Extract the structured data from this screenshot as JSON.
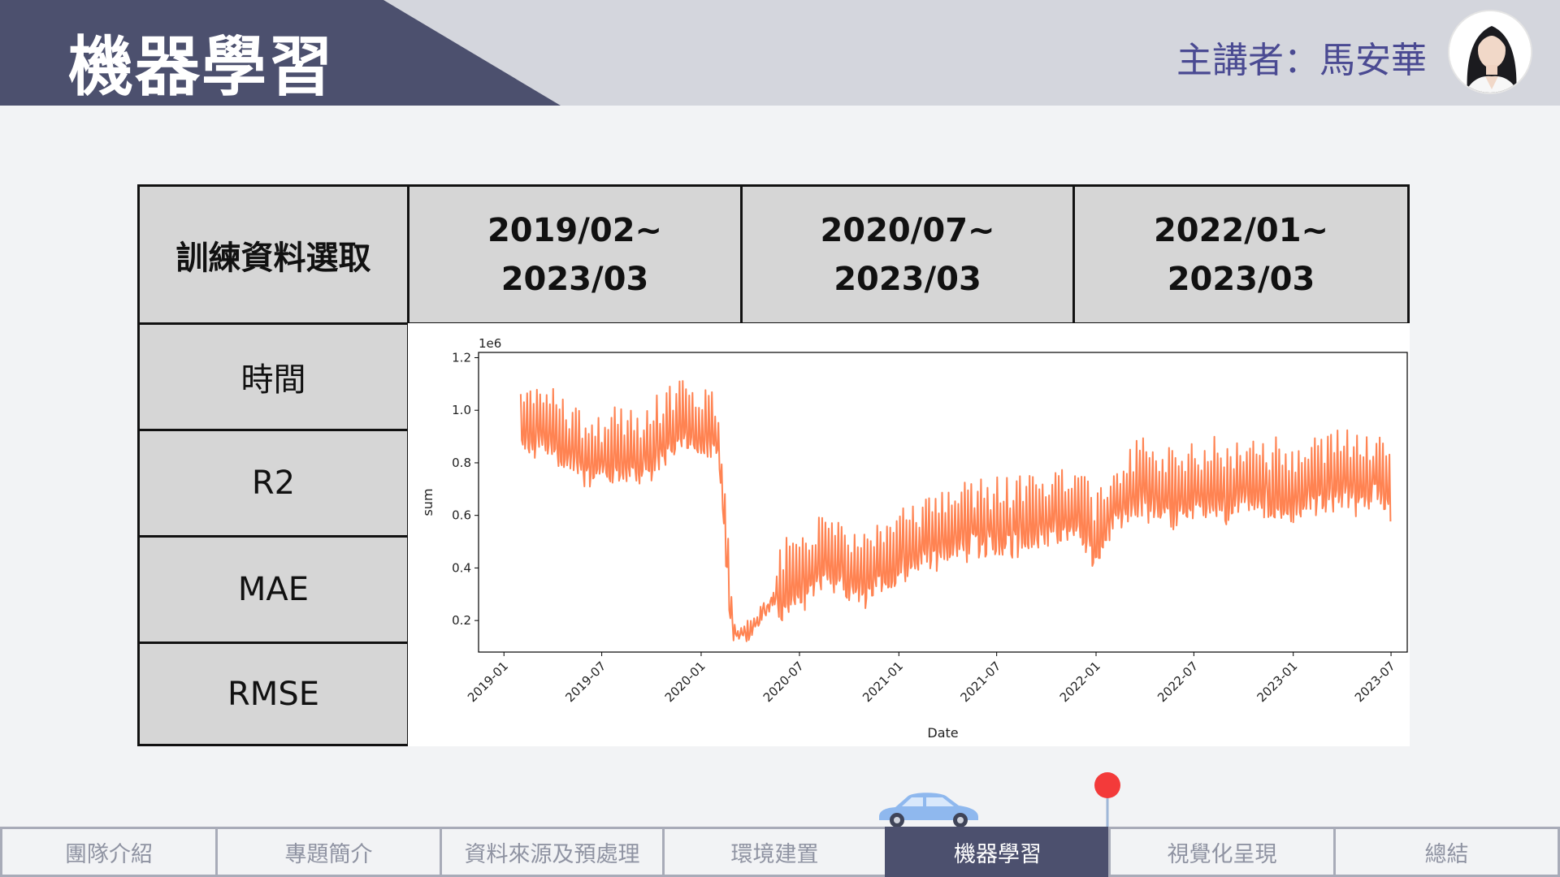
{
  "header": {
    "title": "機器學習",
    "speaker": "主講者：馬安華"
  },
  "table": {
    "header": {
      "first": "訓練資料選取",
      "periods": [
        {
          "line1": "2019/02~",
          "line2": "2023/03"
        },
        {
          "line1": "2020/07~",
          "line2": "2023/03"
        },
        {
          "line1": "2022/01~",
          "line2": "2023/03"
        }
      ]
    },
    "rows": [
      "時間",
      "R2",
      "MAE",
      "RMSE"
    ]
  },
  "chart_data": {
    "type": "line",
    "xlabel": "Date",
    "ylabel": "sum",
    "offset_label": "1e6",
    "x_ticks": [
      "2019-01",
      "2019-07",
      "2020-01",
      "2020-07",
      "2021-01",
      "2021-07",
      "2022-01",
      "2022-07",
      "2023-01",
      "2023-07"
    ],
    "y_ticks": [
      "0.2",
      "0.4",
      "0.6",
      "0.8",
      "1.0",
      "1.2"
    ],
    "ylim": [
      0.08,
      1.22
    ],
    "xlim": [
      "2018-11-15",
      "2023-07-31"
    ],
    "color": "#ff8352",
    "grid": false,
    "series": [
      {
        "x": [
          "2019-02",
          "2019-03",
          "2019-04",
          "2019-05",
          "2019-06",
          "2019-07",
          "2019-08",
          "2019-09",
          "2019-10",
          "2019-11",
          "2019-12",
          "2020-01",
          "2020-02",
          "2020-03",
          "2020-04",
          "2020-05",
          "2020-06",
          "2020-07",
          "2020-08",
          "2020-09",
          "2020-10",
          "2020-11",
          "2020-12",
          "2021-01",
          "2021-02",
          "2021-03",
          "2021-04",
          "2021-05",
          "2021-06",
          "2021-07",
          "2021-08",
          "2021-09",
          "2021-10",
          "2021-11",
          "2021-12",
          "2022-01",
          "2022-02",
          "2022-03",
          "2022-04",
          "2022-05",
          "2022-06",
          "2022-07",
          "2022-08",
          "2022-09",
          "2022-10",
          "2022-11",
          "2022-12",
          "2023-01",
          "2023-02",
          "2023-03",
          "2023-04",
          "2023-05",
          "2023-06",
          "2023-07"
        ],
        "y": [
          0.95,
          0.96,
          0.93,
          0.88,
          0.84,
          0.83,
          0.86,
          0.83,
          0.87,
          0.92,
          0.97,
          0.95,
          0.92,
          0.15,
          0.16,
          0.26,
          0.33,
          0.37,
          0.42,
          0.46,
          0.4,
          0.38,
          0.43,
          0.47,
          0.5,
          0.53,
          0.55,
          0.57,
          0.58,
          0.57,
          0.58,
          0.6,
          0.62,
          0.64,
          0.65,
          0.5,
          0.66,
          0.7,
          0.72,
          0.7,
          0.69,
          0.71,
          0.72,
          0.71,
          0.73,
          0.74,
          0.72,
          0.7,
          0.74,
          0.75,
          0.76,
          0.74,
          0.77,
          0.7
        ]
      }
    ]
  },
  "nav": {
    "items": [
      "團隊介紹",
      "專題簡介",
      "資料來源及預處理",
      "環境建置",
      "機器學習",
      "視覺化呈現",
      "總結"
    ],
    "active_index": 4
  },
  "colors": {
    "header_band": "#4c506e",
    "header_bg": "#d4d6dd",
    "speaker_text": "#4a4a92",
    "table_cell": "#d6d6d6",
    "line": "#ff8352",
    "pin": "#f33a3a",
    "car": "#8fb8ee"
  }
}
